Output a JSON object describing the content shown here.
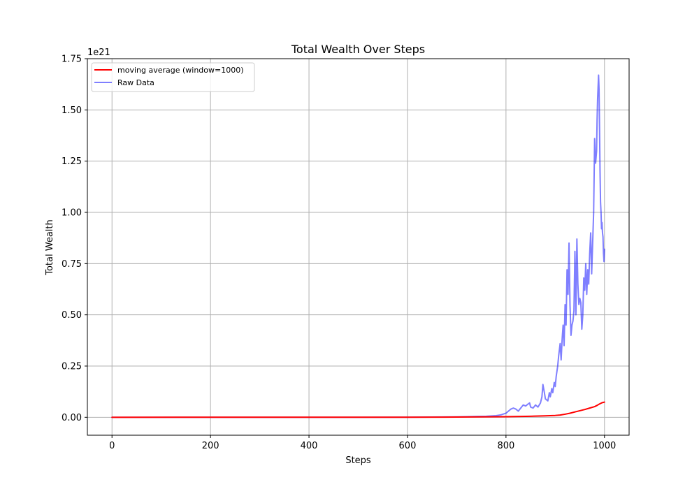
{
  "chart_data": {
    "type": "line",
    "title": "Total Wealth Over Steps",
    "xlabel": "Steps",
    "ylabel": "Total Wealth",
    "y_offset_label": "1e21",
    "xlim": [
      -50,
      1050
    ],
    "ylim": [
      -0.0875,
      1.75
    ],
    "y_scale_factor": 1e+21,
    "x_ticks": [
      0,
      200,
      400,
      600,
      800,
      1000
    ],
    "x_tick_labels": [
      "0",
      "200",
      "400",
      "600",
      "800",
      "1000"
    ],
    "y_ticks": [
      0,
      0.25,
      0.5,
      0.75,
      1.0,
      1.25,
      1.5,
      1.75
    ],
    "y_tick_labels": [
      "0.00",
      "0.25",
      "0.50",
      "0.75",
      "1.00",
      "1.25",
      "1.50",
      "1.75"
    ],
    "grid": true,
    "legend_position": "top-left",
    "series": [
      {
        "name": "moving average (window=1000)",
        "color": "#ff0000",
        "opacity": 1.0,
        "x": [
          0,
          600,
          700,
          750,
          800,
          850,
          880,
          900,
          910,
          920,
          930,
          940,
          950,
          960,
          970,
          980,
          985,
          990,
          995,
          1000
        ],
        "y": [
          0,
          0.0005,
          0.001,
          0.002,
          0.003,
          0.005,
          0.007,
          0.009,
          0.011,
          0.015,
          0.02,
          0.026,
          0.032,
          0.038,
          0.045,
          0.052,
          0.058,
          0.065,
          0.071,
          0.074
        ]
      },
      {
        "name": "Raw Data",
        "color": "#0000ff",
        "opacity": 0.5,
        "x": [
          0,
          100,
          200,
          300,
          400,
          500,
          600,
          650,
          700,
          720,
          740,
          760,
          780,
          790,
          800,
          805,
          810,
          815,
          820,
          825,
          830,
          835,
          840,
          845,
          848,
          850,
          855,
          860,
          865,
          870,
          873,
          875,
          878,
          880,
          885,
          888,
          890,
          893,
          895,
          898,
          900,
          902,
          905,
          907,
          910,
          912,
          914,
          916,
          918,
          920,
          922,
          924,
          926,
          928,
          930,
          932,
          934,
          936,
          938,
          940,
          942,
          944,
          946,
          948,
          950,
          952,
          954,
          956,
          958,
          960,
          962,
          964,
          966,
          968,
          970,
          972,
          974,
          976,
          978,
          980,
          982,
          984,
          985,
          986,
          988,
          989,
          990,
          991,
          992,
          993,
          994,
          995,
          996,
          997,
          998,
          999,
          1000
        ],
        "y": [
          0,
          0,
          0,
          0,
          0,
          0,
          0.0005,
          0.001,
          0.002,
          0.003,
          0.004,
          0.005,
          0.008,
          0.012,
          0.02,
          0.03,
          0.04,
          0.045,
          0.04,
          0.03,
          0.045,
          0.06,
          0.055,
          0.065,
          0.07,
          0.05,
          0.045,
          0.06,
          0.05,
          0.07,
          0.1,
          0.16,
          0.12,
          0.09,
          0.08,
          0.12,
          0.1,
          0.14,
          0.12,
          0.17,
          0.15,
          0.2,
          0.25,
          0.3,
          0.36,
          0.28,
          0.38,
          0.45,
          0.35,
          0.55,
          0.45,
          0.72,
          0.6,
          0.85,
          0.55,
          0.4,
          0.45,
          0.47,
          0.52,
          0.81,
          0.5,
          0.87,
          0.65,
          0.55,
          0.58,
          0.56,
          0.43,
          0.5,
          0.68,
          0.62,
          0.75,
          0.6,
          0.72,
          0.65,
          0.8,
          0.9,
          0.7,
          0.85,
          1.0,
          1.36,
          1.24,
          1.3,
          1.45,
          1.55,
          1.67,
          1.6,
          1.4,
          1.2,
          1.05,
          1.0,
          0.92,
          0.95,
          0.9,
          0.88,
          0.8,
          0.76,
          0.82
        ]
      }
    ]
  }
}
